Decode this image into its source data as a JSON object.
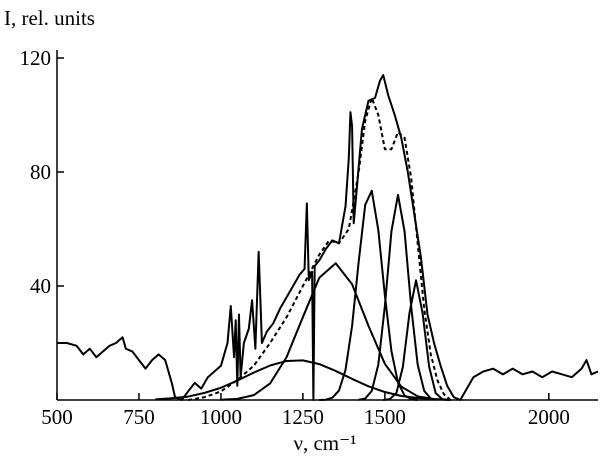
{
  "chart_data": {
    "type": "line",
    "y_label": "I, rel. units",
    "x_label": "ν, cm⁻¹",
    "xlim": [
      500,
      2150
    ],
    "ylim": [
      0,
      120
    ],
    "xticks": [
      500,
      750,
      1000,
      1250,
      1500,
      2000
    ],
    "yticks": [
      40,
      80,
      120
    ],
    "series": [
      {
        "color": "#000000",
        "style": "solid",
        "x": [
          500,
          530,
          560,
          580,
          600,
          620,
          640,
          660,
          680,
          700,
          710,
          730,
          750,
          770,
          790,
          810,
          830,
          850,
          860,
          880,
          900,
          920,
          940,
          960,
          980,
          1000,
          1020,
          1030,
          1040,
          1045,
          1050,
          1055,
          1060,
          1070,
          1085,
          1095,
          1105,
          1115,
          1125,
          1140,
          1160,
          1180,
          1200,
          1220,
          1240,
          1255,
          1262,
          1268,
          1278,
          1282,
          1286,
          1300,
          1320,
          1340,
          1360,
          1380,
          1390,
          1395,
          1400,
          1405,
          1415,
          1430,
          1450,
          1470,
          1485,
          1495,
          1510,
          1530,
          1550,
          1570,
          1590,
          1610,
          1630,
          1650,
          1670,
          1690,
          1710,
          1730,
          1750,
          1770,
          1800,
          1830,
          1860,
          1890,
          1920,
          1950,
          1980,
          2010,
          2040,
          2070,
          2100,
          2115,
          2130,
          2150
        ],
        "values": [
          20,
          20,
          19,
          16,
          18,
          15,
          17,
          19,
          20,
          22,
          18,
          17,
          14,
          11,
          14,
          16,
          14,
          6,
          1,
          0,
          3,
          6,
          4,
          8,
          10,
          12,
          20,
          33,
          15,
          28,
          5,
          30,
          8,
          20,
          25,
          35,
          18,
          52,
          20,
          24,
          27,
          32,
          36,
          40,
          44,
          46,
          69,
          42,
          45,
          0,
          47,
          49,
          53,
          56,
          55,
          68,
          85,
          101,
          96,
          62,
          75,
          95,
          105,
          106,
          112,
          114,
          107,
          100,
          92,
          80,
          65,
          50,
          30,
          20,
          12,
          5,
          1,
          0,
          4,
          8,
          10,
          11,
          9,
          11,
          9,
          10,
          8,
          10,
          9,
          8,
          11,
          14,
          9,
          10
        ]
      },
      {
        "color": "#000000",
        "style": "dashed",
        "x": [
          900,
          950,
          1000,
          1050,
          1100,
          1150,
          1200,
          1250,
          1300,
          1330,
          1360,
          1390,
          1420,
          1440,
          1460,
          1480,
          1500,
          1520,
          1540,
          1560,
          1580,
          1600,
          1620,
          1640,
          1660,
          1680,
          1700
        ],
        "values": [
          0,
          1,
          3,
          7,
          12,
          20,
          29,
          40,
          51,
          56,
          55,
          60,
          80,
          98,
          106,
          100,
          88,
          88,
          94,
          92,
          78,
          55,
          32,
          16,
          7,
          2,
          0
        ]
      },
      {
        "color": "#000000",
        "style": "solid",
        "x": [
          800,
          850,
          900,
          950,
          1000,
          1050,
          1100,
          1150,
          1200,
          1250,
          1300,
          1350,
          1400,
          1450,
          1500,
          1550,
          1600,
          1650,
          1700
        ],
        "values": [
          0.2,
          0.6,
          1.2,
          2.5,
          4.3,
          6.8,
          9.6,
          12.1,
          13.7,
          13.9,
          12.6,
          10.2,
          7.4,
          4.8,
          2.8,
          1.4,
          0.7,
          0.3,
          0.1
        ]
      },
      {
        "color": "#000000",
        "style": "solid",
        "x": [
          1000,
          1050,
          1100,
          1150,
          1200,
          1250,
          1300,
          1350,
          1400,
          1450,
          1500,
          1550,
          1600,
          1650,
          1700
        ],
        "values": [
          0.1,
          0.4,
          1.7,
          5.8,
          15,
          29.1,
          42.9,
          48,
          40.6,
          26,
          12.7,
          4.7,
          1.3,
          0.3,
          0
        ]
      },
      {
        "color": "#000000",
        "style": "solid",
        "x": [
          1300,
          1320,
          1340,
          1360,
          1380,
          1400,
          1420,
          1440,
          1460,
          1480,
          1500,
          1520,
          1540,
          1560,
          1580,
          1600
        ],
        "values": [
          0,
          0.1,
          0.8,
          3.3,
          10.6,
          26,
          48.4,
          68.5,
          73.4,
          59.6,
          36.7,
          17.1,
          6.1,
          1.6,
          0.3,
          0
        ]
      },
      {
        "color": "#000000",
        "style": "solid",
        "x": [
          1420,
          1440,
          1460,
          1480,
          1500,
          1520,
          1540,
          1560,
          1580,
          1600,
          1620,
          1640,
          1660
        ],
        "values": [
          0.1,
          0.5,
          3.2,
          12.4,
          33,
          59.2,
          72,
          59.2,
          33,
          12.4,
          3.2,
          0.5,
          0.1
        ]
      },
      {
        "color": "#000000",
        "style": "solid",
        "x": [
          1495,
          1515,
          1535,
          1555,
          1575,
          1595,
          1615,
          1635,
          1655,
          1675,
          1695
        ],
        "values": [
          0,
          0.3,
          2.4,
          11.7,
          30.5,
          42,
          30.5,
          11.7,
          2.4,
          0.3,
          0
        ]
      }
    ]
  }
}
